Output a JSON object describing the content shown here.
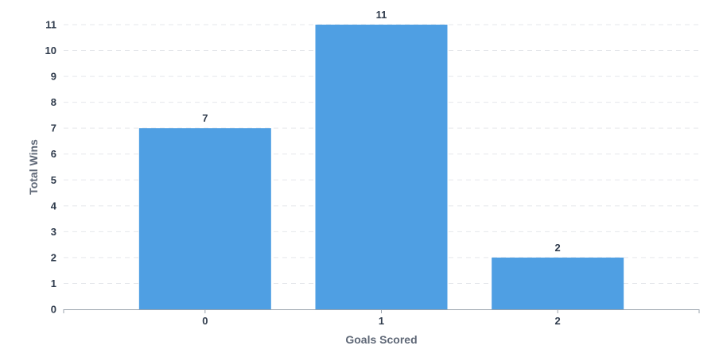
{
  "chart_data": {
    "type": "bar",
    "title": "",
    "xlabel": "Goals Scored",
    "ylabel": "Total Wins",
    "categories": [
      "0",
      "1",
      "2"
    ],
    "values": [
      7,
      11,
      2
    ],
    "data_labels": [
      "7",
      "11",
      "2"
    ],
    "ylim": [
      0,
      11
    ],
    "yticks": [
      "0",
      "1",
      "2",
      "3",
      "4",
      "5",
      "6",
      "7",
      "8",
      "9",
      "10",
      "11"
    ],
    "grid": true,
    "grid_style": "dashed",
    "legend": "none",
    "colors": {
      "bar": "#4f9fe3",
      "grid": "#e5e7eb",
      "axis": "#9aa3ad",
      "text": "#2f3b4c",
      "axis_title": "#5e6776"
    }
  }
}
